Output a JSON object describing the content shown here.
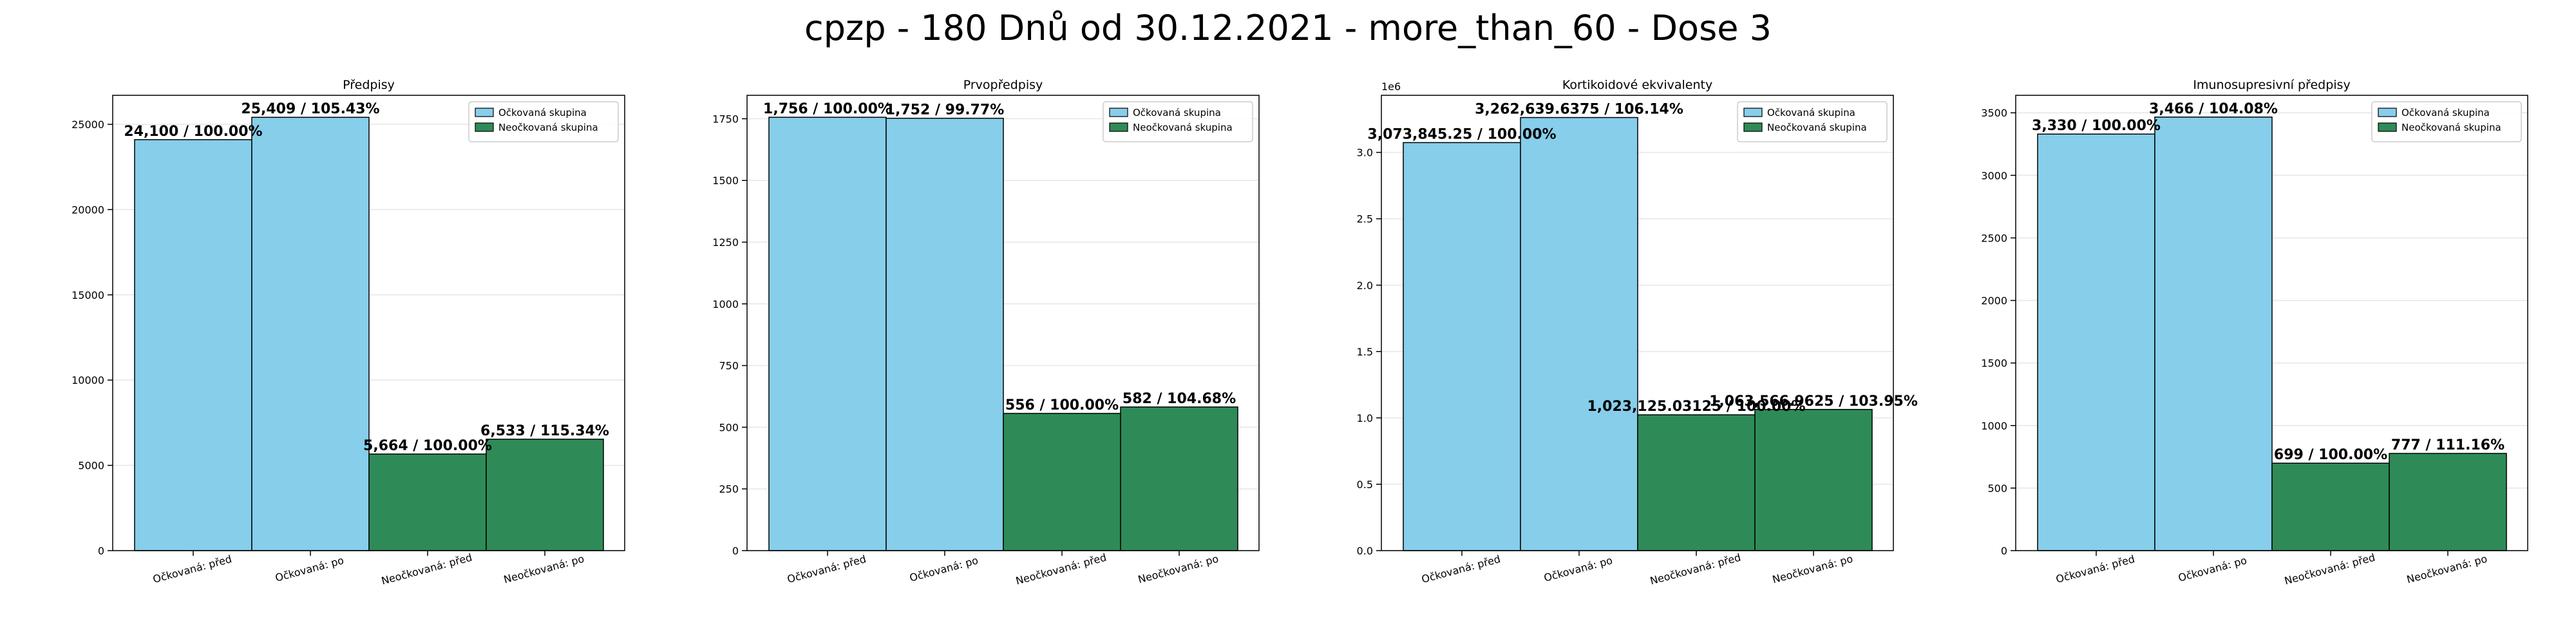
{
  "figure_title": "cpzp - 180 Dnů od 30.12.2021 - more_than_60 - Dose 3",
  "colors": {
    "vaccinated": "#87CEEB",
    "unvaccinated": "#2E8B57",
    "edge": "#000000",
    "grid": "#e6e6e6"
  },
  "chart_data": [
    {
      "type": "bar",
      "title": "Předpisy",
      "categories": [
        "Očkovaná: před",
        "Očkovaná: po",
        "Neočkovaná: před",
        "Neočkovaná: po"
      ],
      "values": [
        24100,
        25409,
        5664,
        6533
      ],
      "data_labels": [
        "24,100 / 100.00%",
        "25,409 / 105.43%",
        "5,664 / 100.00%",
        "6,533 / 115.34%"
      ],
      "groups": [
        "vaccinated",
        "vaccinated",
        "unvaccinated",
        "unvaccinated"
      ],
      "legend": [
        {
          "name": "Očkovaná skupina",
          "color": "#87CEEB"
        },
        {
          "name": "Neočkovaná skupina",
          "color": "#2E8B57"
        }
      ],
      "legend_position": "top-right",
      "ylim": [
        0,
        26700
      ],
      "yticks": [
        0,
        5000,
        10000,
        15000,
        20000,
        25000
      ],
      "ytick_labels": [
        "0",
        "5000",
        "10000",
        "15000",
        "20000",
        "25000"
      ],
      "offset_text": "",
      "grid": true,
      "xlabel": "",
      "ylabel": ""
    },
    {
      "type": "bar",
      "title": "Prvopředpisy",
      "categories": [
        "Očkovaná: před",
        "Očkovaná: po",
        "Neočkovaná: před",
        "Neočkovaná: po"
      ],
      "values": [
        1756,
        1752,
        556,
        582
      ],
      "data_labels": [
        "1,756 / 100.00%",
        "1,752 / 99.77%",
        "556 / 100.00%",
        "582 / 104.68%"
      ],
      "groups": [
        "vaccinated",
        "vaccinated",
        "unvaccinated",
        "unvaccinated"
      ],
      "legend": [
        {
          "name": "Očkovaná skupina",
          "color": "#87CEEB"
        },
        {
          "name": "Neočkovaná skupina",
          "color": "#2E8B57"
        }
      ],
      "legend_position": "top-right",
      "ylim": [
        0,
        1845
      ],
      "yticks": [
        0,
        250,
        500,
        750,
        1000,
        1250,
        1500,
        1750
      ],
      "ytick_labels": [
        "0",
        "250",
        "500",
        "750",
        "1000",
        "1250",
        "1500",
        "1750"
      ],
      "offset_text": "",
      "grid": true,
      "xlabel": "",
      "ylabel": ""
    },
    {
      "type": "bar",
      "title": "Kortikoidové ekvivalenty",
      "categories": [
        "Očkovaná: před",
        "Očkovaná: po",
        "Neočkovaná: před",
        "Neočkovaná: po"
      ],
      "values": [
        3073845.25,
        3262639.6375,
        1023125.03125,
        1063566.9625
      ],
      "data_labels": [
        "3,073,845.25 / 100.00%",
        "3,262,639.6375 / 106.14%",
        "1,023,125.03125 / 100.00%",
        "1,063,566.9625 / 103.95%"
      ],
      "groups": [
        "vaccinated",
        "vaccinated",
        "unvaccinated",
        "unvaccinated"
      ],
      "legend": [
        {
          "name": "Očkovaná skupina",
          "color": "#87CEEB"
        },
        {
          "name": "Neočkovaná skupina",
          "color": "#2E8B57"
        }
      ],
      "legend_position": "top-right",
      "ylim": [
        0,
        3430000
      ],
      "yticks": [
        0,
        500000,
        1000000,
        1500000,
        2000000,
        2500000,
        3000000
      ],
      "ytick_labels": [
        "0.0",
        "0.5",
        "1.0",
        "1.5",
        "2.0",
        "2.5",
        "3.0"
      ],
      "offset_text": "1e6",
      "grid": true,
      "xlabel": "",
      "ylabel": ""
    },
    {
      "type": "bar",
      "title": "Imunosupresivní předpisy",
      "categories": [
        "Očkovaná: před",
        "Očkovaná: po",
        "Neočkovaná: před",
        "Neočkovaná: po"
      ],
      "values": [
        3330,
        3466,
        699,
        777
      ],
      "data_labels": [
        "3,330 / 100.00%",
        "3,466 / 104.08%",
        "699 / 100.00%",
        "777 / 111.16%"
      ],
      "groups": [
        "vaccinated",
        "vaccinated",
        "unvaccinated",
        "unvaccinated"
      ],
      "legend": [
        {
          "name": "Očkovaná skupina",
          "color": "#87CEEB"
        },
        {
          "name": "Neočkovaná skupina",
          "color": "#2E8B57"
        }
      ],
      "legend_position": "top-right",
      "ylim": [
        0,
        3640
      ],
      "yticks": [
        0,
        500,
        1000,
        1500,
        2000,
        2500,
        3000,
        3500
      ],
      "ytick_labels": [
        "0",
        "500",
        "1000",
        "1500",
        "2000",
        "2500",
        "3000",
        "3500"
      ],
      "offset_text": "",
      "grid": true,
      "xlabel": "",
      "ylabel": ""
    }
  ]
}
